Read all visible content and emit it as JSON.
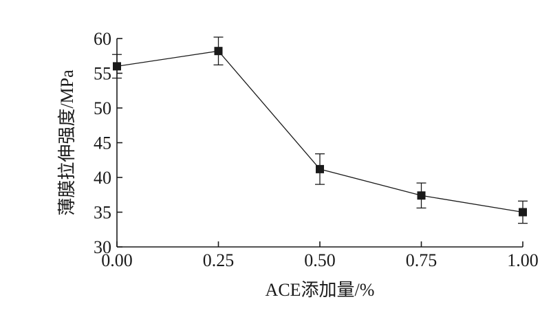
{
  "chart_data": {
    "type": "line",
    "x": [
      0.0,
      0.25,
      0.5,
      0.75,
      1.0
    ],
    "y": [
      56.0,
      58.2,
      41.2,
      37.4,
      35.0
    ],
    "error": [
      1.7,
      2.0,
      2.2,
      1.8,
      1.6
    ],
    "x_tick_labels": [
      "0.00",
      "0.25",
      "0.50",
      "0.75",
      "1.00"
    ],
    "y_ticks": [
      30,
      35,
      40,
      45,
      50,
      55,
      60
    ],
    "xlim": [
      0,
      1
    ],
    "ylim": [
      30,
      60
    ],
    "xlabel": "ACE添加量/%",
    "ylabel": "薄膜拉伸强度/MPa",
    "marker": "square",
    "grid": false,
    "colors": {
      "series": "#1a1a1a",
      "axes": "#1a1a1a"
    }
  }
}
